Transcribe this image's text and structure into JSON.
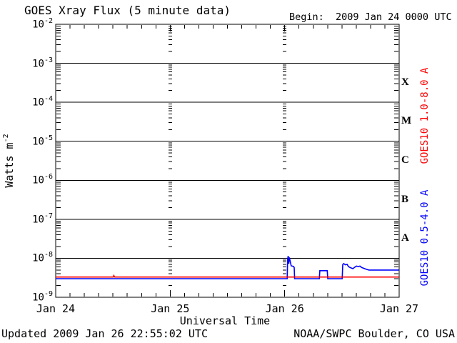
{
  "header": {
    "title": "GOES Xray Flux (5 minute data)",
    "begin_label": "Begin:  2009 Jan 24 0000 UTC"
  },
  "footer": {
    "updated": "Updated 2009 Jan 26 22:55:02 UTC",
    "source": "NOAA/SWPC Boulder, CO USA"
  },
  "colors": {
    "background": "#FFFFFF",
    "axis": "#000000",
    "short_channel": "#0000FF",
    "long_channel": "#FF0000"
  },
  "chart_data": {
    "type": "line",
    "title": "GOES Xray Flux (5 minute data)",
    "begin": "2009 Jan 24 0000 UTC",
    "xlabel": "Universal Time",
    "ylabel": "Watts m^-2",
    "grid": "day boundaries as dotted log-tick columns, horizontal line each decade",
    "x_axis": {
      "tick_labels": [
        "Jan 24",
        "Jan 25",
        "Jan 26",
        "Jan 27"
      ],
      "range_days": [
        0,
        3
      ],
      "minor_tick_hours": 3
    },
    "y_axis": {
      "scale": "log",
      "tick_labels": [
        "10^-2",
        "10^-3",
        "10^-4",
        "10^-5",
        "10^-6",
        "10^-7",
        "10^-8",
        "10^-9"
      ],
      "range": [
        1e-09,
        0.01
      ]
    },
    "flare_classes": [
      {
        "label": "X",
        "log_mid": -3.5
      },
      {
        "label": "M",
        "log_mid": -4.5
      },
      {
        "label": "C",
        "log_mid": -5.5
      },
      {
        "label": "B",
        "log_mid": -6.5
      },
      {
        "label": "A",
        "log_mid": -7.5
      }
    ],
    "grid_days": [
      1,
      2
    ],
    "series": [
      {
        "name": "GOES10 0.5-4.0 A",
        "color": "#0000FF",
        "label_center_y": 333,
        "points": [
          [
            0,
            3e-09
          ],
          [
            2.022,
            3e-09
          ],
          [
            2.026,
            9.5e-09
          ],
          [
            2.031,
            1.15e-08
          ],
          [
            2.036,
            7.2e-09
          ],
          [
            2.041,
            1.05e-08
          ],
          [
            2.049,
            8.2e-09
          ],
          [
            2.057,
            6.4e-09
          ],
          [
            2.077,
            6.2e-09
          ],
          [
            2.083,
            5.8e-09
          ],
          [
            2.087,
            3e-09
          ],
          [
            2.303,
            3e-09
          ],
          [
            2.307,
            4.8e-09
          ],
          [
            2.372,
            4.8e-09
          ],
          [
            2.376,
            3e-09
          ],
          [
            2.502,
            3e-09
          ],
          [
            2.507,
            6.9e-09
          ],
          [
            2.516,
            7.3e-09
          ],
          [
            2.531,
            6.8e-09
          ],
          [
            2.546,
            7e-09
          ],
          [
            2.557,
            6.1e-09
          ],
          [
            2.577,
            5.7e-09
          ],
          [
            2.596,
            5.4e-09
          ],
          [
            2.612,
            5.9e-09
          ],
          [
            2.628,
            6.3e-09
          ],
          [
            2.643,
            6.1e-09
          ],
          [
            2.657,
            6.3e-09
          ],
          [
            2.672,
            5.8e-09
          ],
          [
            2.693,
            5.5e-09
          ],
          [
            2.714,
            5.2e-09
          ],
          [
            2.736,
            5e-09
          ],
          [
            3.0,
            5e-09
          ]
        ]
      },
      {
        "name": "GOES10 1.0-8.0 A",
        "color": "#FF0000",
        "label_center_y": 162,
        "points": [
          [
            0,
            3.3e-09
          ],
          [
            0.503,
            3.3e-09
          ],
          [
            0.508,
            3.6e-09
          ],
          [
            0.516,
            3.3e-09
          ],
          [
            3.0,
            3.3e-09
          ]
        ]
      }
    ]
  }
}
